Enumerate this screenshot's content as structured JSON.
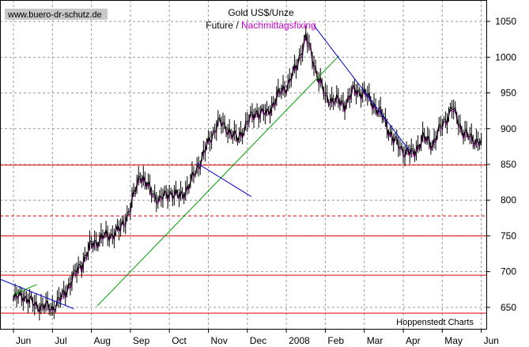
{
  "watermark": "www.buero-dr-schutz.de",
  "credit": "Hoppenstedt Charts",
  "chart_data": {
    "type": "line",
    "title": "Gold US$/Unze",
    "subtitle_prefix": "Future / ",
    "subtitle_highlight": "Nachmittagsfixing",
    "xlabel": "",
    "ylabel": "",
    "ylim": [
      620,
      1080
    ],
    "y_ticks": [
      650,
      700,
      750,
      800,
      850,
      900,
      950,
      1000,
      1050
    ],
    "x_ticks": [
      "Jun",
      "Jul",
      "Aug",
      "Sep",
      "Oct",
      "Nov",
      "Dec",
      "2008",
      "Feb",
      "Mar",
      "Apr",
      "May",
      "Jun"
    ],
    "grid": true,
    "support_lines": [
      {
        "value": 642,
        "style": "solid"
      },
      {
        "value": 695,
        "style": "solid"
      },
      {
        "value": 750,
        "style": "solid"
      },
      {
        "value": 778,
        "style": "dashed"
      },
      {
        "value": 849,
        "style": "solid"
      }
    ],
    "series": [
      {
        "name": "Future",
        "color": "#000000",
        "x": [
          0,
          0.25,
          0.5,
          0.75,
          1,
          1.25,
          1.5,
          1.75,
          2,
          2.25,
          2.5,
          2.75,
          3,
          3.25,
          3.5,
          3.75,
          4,
          4.25,
          4.5,
          4.75,
          5,
          5.25,
          5.5,
          5.75,
          6,
          6.25,
          6.5,
          6.75,
          7,
          7.25,
          7.5,
          7.75,
          8,
          8.25,
          8.5,
          8.75,
          9,
          9.25,
          9.5,
          9.75,
          10,
          10.25,
          10.5,
          10.75,
          11,
          11.25,
          11.5,
          11.75,
          12
        ],
        "values": [
          662,
          668,
          655,
          652,
          650,
          665,
          690,
          712,
          738,
          748,
          752,
          760,
          790,
          838,
          815,
          800,
          812,
          805,
          820,
          850,
          880,
          910,
          900,
          885,
          910,
          925,
          920,
          945,
          960,
          985,
          1030,
          985,
          945,
          940,
          935,
          955,
          950,
          935,
          915,
          885,
          870,
          865,
          888,
          880,
          905,
          930,
          900,
          885,
          885
        ]
      },
      {
        "name": "Nachmittagsfixing",
        "color": "#cc00cc",
        "x": [
          0,
          0.25,
          0.5,
          0.75,
          1,
          1.25,
          1.5,
          1.75,
          2,
          2.25,
          2.5,
          2.75,
          3,
          3.25,
          3.5,
          3.75,
          4,
          4.25,
          4.5,
          4.75,
          5,
          5.25,
          5.5,
          5.75,
          6,
          6.25,
          6.5,
          6.75,
          7,
          7.25,
          7.5,
          7.75,
          8,
          8.25,
          8.5,
          8.75,
          9,
          9.25,
          9.5,
          9.75,
          10,
          10.25,
          10.5,
          10.75,
          11,
          11.25,
          11.5,
          11.75,
          12
        ],
        "values": [
          660,
          666,
          654,
          650,
          648,
          662,
          686,
          708,
          735,
          746,
          750,
          758,
          786,
          835,
          812,
          798,
          810,
          803,
          818,
          848,
          878,
          908,
          898,
          883,
          907,
          922,
          918,
          942,
          958,
          982,
          1025,
          982,
          942,
          938,
          932,
          952,
          948,
          932,
          912,
          882,
          868,
          862,
          885,
          877,
          902,
          927,
          897,
          882,
          882
        ]
      }
    ],
    "trend_lines": [
      {
        "color": "#0000cc",
        "points": [
          [
            -0.6,
            695
          ],
          [
            1.55,
            648
          ]
        ]
      },
      {
        "color": "#00a000",
        "points": [
          [
            0.0,
            668
          ],
          [
            0.6,
            682
          ]
        ]
      },
      {
        "color": "#00a000",
        "points": [
          [
            2.15,
            652
          ],
          [
            8.35,
            1002
          ]
        ]
      },
      {
        "color": "#0000cc",
        "points": [
          [
            4.7,
            852
          ],
          [
            6.1,
            805
          ]
        ]
      },
      {
        "color": "#0000cc",
        "points": [
          [
            7.7,
            1045
          ],
          [
            10.15,
            870
          ]
        ]
      }
    ]
  }
}
